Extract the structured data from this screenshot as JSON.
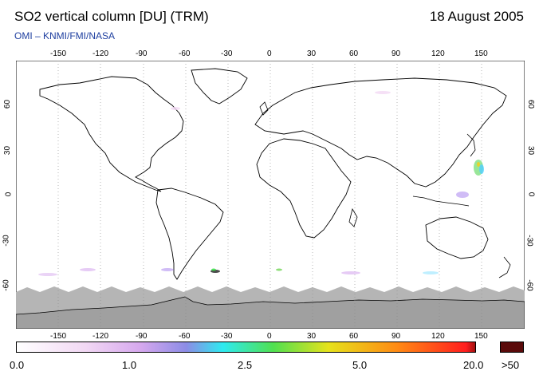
{
  "header": {
    "title": "SO2 vertical column [DU] (TRM)",
    "date": "18 August 2005",
    "credit": "OMI  –  KNMI/FMI/NASA"
  },
  "map": {
    "lon_ticks": [
      "-150",
      "-120",
      "-90",
      "-60",
      "-30",
      "0",
      "30",
      "60",
      "90",
      "120",
      "150"
    ],
    "lat_ticks": [
      "60",
      "30",
      "0",
      "-30",
      "-60"
    ],
    "land_color": "#ffffff",
    "ocean_color": "#ffffff",
    "no_data_color": "#b5b5b5"
  },
  "colorbar": {
    "labels": [
      "0.0",
      "1.0",
      "2.5",
      "5.0",
      "20.0",
      ">50"
    ],
    "colors": [
      "#ffffff",
      "#f2d8f4",
      "#d6a8ee",
      "#8c8ce6",
      "#2eeaf0",
      "#50e050",
      "#e6e21c",
      "#ff8a14",
      "#ff1e1e",
      "#a01010"
    ],
    "over_color": "#5a0a0a"
  }
}
